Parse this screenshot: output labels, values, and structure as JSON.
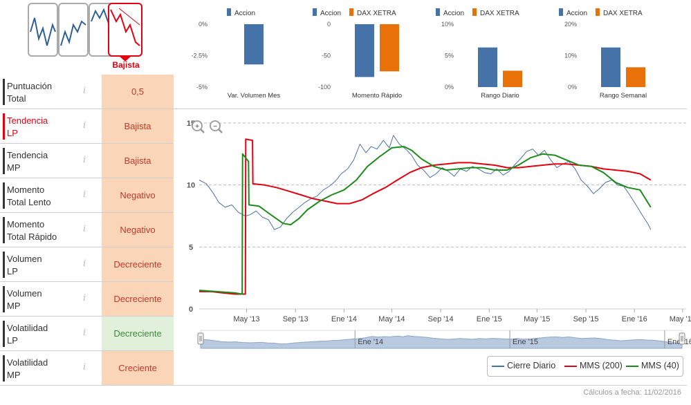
{
  "trend_icons": {
    "selected_label": "Bajista",
    "icons": [
      {
        "name": "trend-alcista-icon"
      },
      {
        "name": "trend-lateral-alcista-icon"
      },
      {
        "name": "trend-lateral-icon"
      },
      {
        "name": "trend-bajista-icon"
      }
    ]
  },
  "sidebar": {
    "rows": [
      {
        "label_1": "Puntuación",
        "label_2": "Total",
        "value": "0,5",
        "bg": "#fbd5b7",
        "fg": "#c0392b",
        "highlight": false
      },
      {
        "label_1": "Tendencia",
        "label_2": "LP",
        "value": "Bajista",
        "bg": "#fbd5b7",
        "fg": "#c0392b",
        "highlight": true
      },
      {
        "label_1": "Tendencia",
        "label_2": "MP",
        "value": "Bajista",
        "bg": "#fbd5b7",
        "fg": "#c0392b",
        "highlight": false
      },
      {
        "label_1": "Momento",
        "label_2": "Total Lento",
        "value": "Negativo",
        "bg": "#fbd5b7",
        "fg": "#c0392b",
        "highlight": false
      },
      {
        "label_1": "Momento",
        "label_2": "Total Rápido",
        "value": "Negativo",
        "bg": "#fbd5b7",
        "fg": "#c0392b",
        "highlight": false
      },
      {
        "label_1": "Volumen",
        "label_2": "LP",
        "value": "Decreciente",
        "bg": "#fbd5b7",
        "fg": "#c0392b",
        "highlight": false
      },
      {
        "label_1": "Volumen",
        "label_2": "MP",
        "value": "Decreciente",
        "bg": "#fbd5b7",
        "fg": "#c0392b",
        "highlight": false
      },
      {
        "label_1": "Volatilidad",
        "label_2": "LP",
        "value": "Decreciente",
        "bg": "#e0f0db",
        "fg": "#3a8a3a",
        "highlight": false
      },
      {
        "label_1": "Volatilidad",
        "label_2": "MP",
        "value": "Creciente",
        "bg": "#fbd5b7",
        "fg": "#c0392b",
        "highlight": false
      }
    ],
    "info_glyph": "i"
  },
  "colors": {
    "accion": "#4572a7",
    "dax": "#e8710a",
    "price": "#4a6fa5",
    "mms200": "#e3000f",
    "mms40": "#1a8c1a",
    "navigator_fill": "#b8c9e0"
  },
  "chart_data": [
    {
      "type": "bar",
      "xlabel": "Var. Volumen Mes",
      "ticks": [
        "0%",
        "-2.5%",
        "-5%"
      ],
      "ylim": [
        -5,
        0
      ],
      "series": [
        {
          "name": "Accion",
          "values": [
            -3.2
          ]
        }
      ]
    },
    {
      "type": "bar",
      "xlabel": "Momento Rápido",
      "ticks": [
        "0",
        "-50",
        "-100"
      ],
      "ylim": [
        -100,
        0
      ],
      "series": [
        {
          "name": "Accion",
          "values": [
            -84
          ]
        },
        {
          "name": "DAX XETRA",
          "values": [
            -75
          ]
        }
      ]
    },
    {
      "type": "bar",
      "xlabel": "Rango Diario",
      "ticks": [
        "10%",
        "5%",
        "0%"
      ],
      "ylim": [
        0,
        10
      ],
      "series": [
        {
          "name": "Accion",
          "values": [
            6.3
          ]
        },
        {
          "name": "DAX XETRA",
          "values": [
            2.6
          ]
        }
      ]
    },
    {
      "type": "bar",
      "xlabel": "Rango Semanal",
      "ticks": [
        "20%",
        "10%",
        "0%"
      ],
      "ylim": [
        0,
        20
      ],
      "series": [
        {
          "name": "Accion",
          "values": [
            12.6
          ]
        },
        {
          "name": "DAX XETRA",
          "values": [
            6.3
          ]
        }
      ]
    },
    {
      "type": "line",
      "ylim": [
        0,
        15
      ],
      "yticks": [
        "15",
        "10",
        "5",
        "0"
      ],
      "xticks": [
        "May '13",
        "Sep '13",
        "Ene '14",
        "May '14",
        "Sep '14",
        "Ene '15",
        "May '15",
        "Sep '15",
        "Ene '16",
        "May '16"
      ],
      "navigator_labels": [
        "Ene '14",
        "Ene '15",
        "Ene '16"
      ],
      "series": [
        {
          "name": "Cierre Diario",
          "points": [
            [
              "2013-01-02",
              10.4
            ],
            [
              "2013-01-20",
              10.1
            ],
            [
              "2013-02-05",
              9.4
            ],
            [
              "2013-02-20",
              8.6
            ],
            [
              "2013-03-08",
              8.2
            ],
            [
              "2013-03-25",
              8.4
            ],
            [
              "2013-04-10",
              7.8
            ],
            [
              "2013-04-28",
              7.5
            ],
            [
              "2013-05-10",
              7.6
            ],
            [
              "2013-05-25",
              7.9
            ],
            [
              "2013-06-10",
              7.4
            ],
            [
              "2013-06-25",
              7.2
            ],
            [
              "2013-07-10",
              6.4
            ],
            [
              "2013-07-25",
              6.6
            ],
            [
              "2013-08-10",
              7.3
            ],
            [
              "2013-08-25",
              7.8
            ],
            [
              "2013-09-10",
              8.2
            ],
            [
              "2013-09-25",
              8.6
            ],
            [
              "2013-10-10",
              8.9
            ],
            [
              "2013-10-25",
              9.1
            ],
            [
              "2013-11-10",
              9.6
            ],
            [
              "2013-11-25",
              9.9
            ],
            [
              "2013-12-10",
              10.3
            ],
            [
              "2013-12-25",
              10.9
            ],
            [
              "2014-01-10",
              11.3
            ],
            [
              "2014-01-25",
              12.0
            ],
            [
              "2014-02-10",
              13.3
            ],
            [
              "2014-02-25",
              12.6
            ],
            [
              "2014-03-10",
              13.1
            ],
            [
              "2014-03-25",
              12.9
            ],
            [
              "2014-04-10",
              13.6
            ],
            [
              "2014-04-25",
              13.0
            ],
            [
              "2014-05-05",
              14.0
            ],
            [
              "2014-05-20",
              13.3
            ],
            [
              "2014-06-05",
              12.9
            ],
            [
              "2014-06-20",
              12.4
            ],
            [
              "2014-07-05",
              11.6
            ],
            [
              "2014-07-20",
              11.2
            ],
            [
              "2014-08-05",
              10.6
            ],
            [
              "2014-08-20",
              10.9
            ],
            [
              "2014-09-05",
              11.4
            ],
            [
              "2014-09-20",
              11.1
            ],
            [
              "2014-10-05",
              10.7
            ],
            [
              "2014-10-20",
              11.3
            ],
            [
              "2014-11-05",
              11.1
            ],
            [
              "2014-11-20",
              11.5
            ],
            [
              "2014-12-05",
              11.3
            ],
            [
              "2014-12-20",
              11.0
            ],
            [
              "2015-01-05",
              10.9
            ],
            [
              "2015-01-20",
              11.3
            ],
            [
              "2015-02-05",
              10.8
            ],
            [
              "2015-02-20",
              11.1
            ],
            [
              "2015-03-05",
              11.6
            ],
            [
              "2015-03-20",
              12.1
            ],
            [
              "2015-04-05",
              12.7
            ],
            [
              "2015-04-20",
              12.9
            ],
            [
              "2015-05-05",
              12.4
            ],
            [
              "2015-05-20",
              12.8
            ],
            [
              "2015-06-05",
              12.0
            ],
            [
              "2015-06-20",
              11.4
            ],
            [
              "2015-07-05",
              11.7
            ],
            [
              "2015-07-20",
              11.9
            ],
            [
              "2015-08-05",
              11.3
            ],
            [
              "2015-08-20",
              10.4
            ],
            [
              "2015-09-05",
              9.9
            ],
            [
              "2015-09-20",
              9.3
            ],
            [
              "2015-10-05",
              9.7
            ],
            [
              "2015-10-20",
              10.2
            ],
            [
              "2015-11-05",
              10.4
            ],
            [
              "2015-11-20",
              10.0
            ],
            [
              "2015-12-05",
              9.9
            ],
            [
              "2015-12-20",
              9.2
            ],
            [
              "2016-01-05",
              8.4
            ],
            [
              "2016-01-20",
              7.6
            ],
            [
              "2016-02-05",
              6.8
            ],
            [
              "2016-02-11",
              6.4
            ]
          ]
        },
        {
          "name": "MMS (200)",
          "points": [
            [
              "2013-01-02",
              1.4
            ],
            [
              "2013-02-01",
              1.4
            ],
            [
              "2013-03-01",
              1.3
            ],
            [
              "2013-04-01",
              1.2
            ],
            [
              "2013-04-28",
              1.2
            ],
            [
              "2013-04-29",
              13.7
            ],
            [
              "2013-05-16",
              13.6
            ],
            [
              "2013-05-17",
              10.1
            ],
            [
              "2013-06-15",
              10.0
            ],
            [
              "2013-07-15",
              9.8
            ],
            [
              "2013-08-15",
              9.5
            ],
            [
              "2013-09-15",
              9.2
            ],
            [
              "2013-10-15",
              8.9
            ],
            [
              "2013-11-15",
              8.7
            ],
            [
              "2013-12-15",
              8.5
            ],
            [
              "2014-01-15",
              8.5
            ],
            [
              "2014-02-15",
              8.8
            ],
            [
              "2014-03-15",
              9.3
            ],
            [
              "2014-04-15",
              9.8
            ],
            [
              "2014-05-15",
              10.4
            ],
            [
              "2014-06-15",
              11.0
            ],
            [
              "2014-07-15",
              11.4
            ],
            [
              "2014-08-15",
              11.6
            ],
            [
              "2014-09-15",
              11.7
            ],
            [
              "2014-10-15",
              11.8
            ],
            [
              "2014-11-15",
              11.8
            ],
            [
              "2014-12-15",
              11.7
            ],
            [
              "2015-01-15",
              11.6
            ],
            [
              "2015-02-15",
              11.4
            ],
            [
              "2015-03-15",
              11.4
            ],
            [
              "2015-04-15",
              11.5
            ],
            [
              "2015-05-15",
              11.6
            ],
            [
              "2015-06-15",
              11.7
            ],
            [
              "2015-07-15",
              11.7
            ],
            [
              "2015-08-15",
              11.6
            ],
            [
              "2015-09-15",
              11.5
            ],
            [
              "2015-10-15",
              11.3
            ],
            [
              "2015-11-15",
              11.2
            ],
            [
              "2015-12-15",
              11.1
            ],
            [
              "2016-01-15",
              10.9
            ],
            [
              "2016-02-11",
              10.4
            ]
          ]
        },
        {
          "name": "MMS (40)",
          "points": [
            [
              "2013-01-02",
              1.5
            ],
            [
              "2013-02-15",
              1.4
            ],
            [
              "2013-04-01",
              1.3
            ],
            [
              "2013-04-20",
              1.2
            ],
            [
              "2013-04-21",
              12.5
            ],
            [
              "2013-05-06",
              11.9
            ],
            [
              "2013-05-07",
              8.4
            ],
            [
              "2013-06-01",
              8.3
            ],
            [
              "2013-07-01",
              7.6
            ],
            [
              "2013-08-01",
              6.9
            ],
            [
              "2013-08-20",
              6.8
            ],
            [
              "2013-09-10",
              7.3
            ],
            [
              "2013-10-01",
              8.0
            ],
            [
              "2013-11-01",
              8.7
            ],
            [
              "2013-12-01",
              9.2
            ],
            [
              "2014-01-01",
              9.6
            ],
            [
              "2014-02-01",
              10.4
            ],
            [
              "2014-03-01",
              11.5
            ],
            [
              "2014-04-01",
              12.3
            ],
            [
              "2014-05-01",
              13.0
            ],
            [
              "2014-06-01",
              13.1
            ],
            [
              "2014-06-20",
              12.8
            ],
            [
              "2014-07-15",
              12.1
            ],
            [
              "2014-08-15",
              11.5
            ],
            [
              "2014-09-15",
              11.2
            ],
            [
              "2014-10-15",
              11.3
            ],
            [
              "2014-11-15",
              11.4
            ],
            [
              "2014-12-15",
              11.4
            ],
            [
              "2015-01-15",
              11.2
            ],
            [
              "2015-02-15",
              11.2
            ],
            [
              "2015-03-15",
              11.6
            ],
            [
              "2015-04-15",
              12.2
            ],
            [
              "2015-05-15",
              12.5
            ],
            [
              "2015-06-15",
              12.4
            ],
            [
              "2015-07-15",
              12.0
            ],
            [
              "2015-08-15",
              11.6
            ],
            [
              "2015-09-15",
              11.5
            ],
            [
              "2015-10-15",
              11.0
            ],
            [
              "2015-11-15",
              10.2
            ],
            [
              "2015-12-15",
              9.8
            ],
            [
              "2016-01-15",
              9.6
            ],
            [
              "2016-02-11",
              8.2
            ]
          ]
        }
      ]
    }
  ],
  "legend": {
    "cierre": "Cierre Diario",
    "mms200": "MMS (200)",
    "mms40": "MMS (40)"
  },
  "zoom": {
    "in": "zoom-in-icon",
    "out": "zoom-out-icon"
  },
  "footer": {
    "calc_date": "Cálculos a fecha: 11/02/2016"
  }
}
